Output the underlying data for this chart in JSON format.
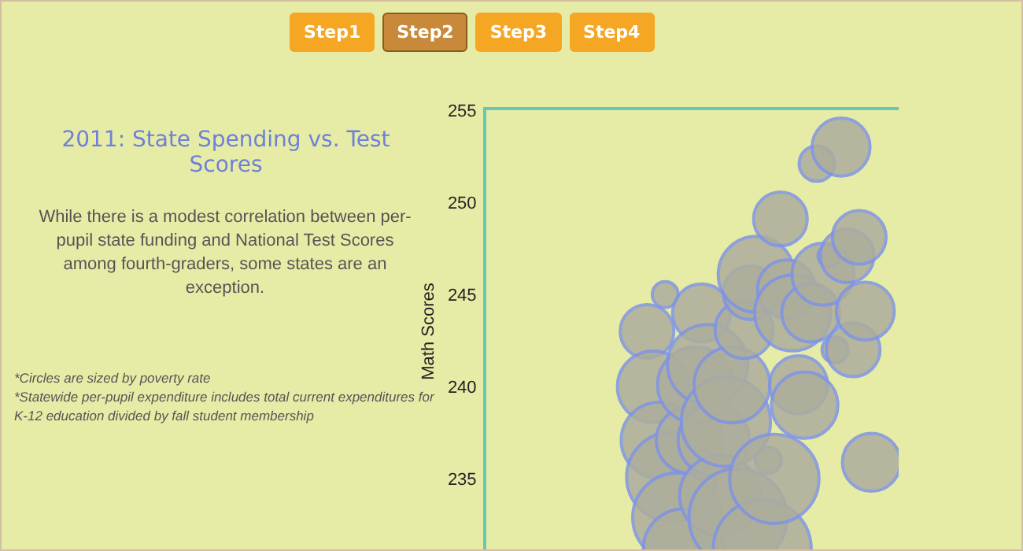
{
  "chart_data": {
    "type": "bubble",
    "title": "2011: State Spending vs. Test Scores",
    "subtitle": "While there is a modest correlation between per-pupil state funding and National Test Scores among fourth-graders, some states are an exception.",
    "ylabel": "Math Scores",
    "annotations": [
      "Step1",
      "Step2",
      "Step3",
      "Step4",
      "*Circles are sized by poverty rate",
      "*Statewide per-pupil expenditure includes total current expenditures for K-12 education divided by fall student membership"
    ],
    "categories": [
      null,
      null,
      null,
      null,
      null,
      null,
      null,
      null,
      null,
      null,
      null,
      null,
      null,
      null,
      null,
      null,
      null,
      null,
      null,
      null,
      null,
      null,
      null,
      null,
      null,
      null,
      null,
      null,
      null,
      null,
      null,
      null,
      null,
      null,
      null,
      null,
      null,
      null,
      null,
      null,
      null,
      null,
      null,
      null,
      null,
      null,
      null,
      null,
      null,
      null,
      null,
      null,
      null,
      null,
      null,
      null,
      null,
      null,
      null,
      null,
      null,
      null,
      null,
      null,
      null,
      null,
      null,
      null
    ],
    "values": [
      null,
      null,
      null,
      null,
      null,
      null,
      null,
      null,
      null,
      null,
      null,
      null,
      null,
      null,
      null,
      null,
      null,
      null,
      null,
      null,
      null,
      null,
      null,
      null,
      null,
      null,
      243.0,
      240.0,
      237.1,
      245.0,
      235.1,
      232.9,
      231.2,
      237.1,
      240.1,
      244.0,
      241.2,
      237.1,
      234.1,
      238.1,
      240.1,
      232.9,
      243.1,
      245.1,
      246.1,
      231.2,
      236.0,
      235.0,
      249.1,
      245.3,
      244.0,
      240.1,
      239.0,
      244.0,
      252.1,
      246.1,
      247.1,
      242.0,
      253.0,
      247.1,
      242.0,
      248.1,
      244.1,
      235.9,
      null,
      null,
      null,
      null
    ],
    "sizes": [
      null,
      null,
      null,
      null,
      null,
      null,
      null,
      null,
      null,
      null,
      null,
      null,
      null,
      null,
      null,
      null,
      null,
      null,
      null,
      null,
      null,
      null,
      null,
      null,
      null,
      null,
      0.3,
      0.53,
      0.6,
      0.07,
      0.83,
      0.83,
      0.67,
      0.46,
      0.6,
      0.35,
      0.67,
      0.53,
      0.67,
      0.83,
      0.6,
      1,
      0.35,
      0.3,
      0.6,
      1,
      0.07,
      0.83,
      0.3,
      0.35,
      0.6,
      0.35,
      0.46,
      0.35,
      0.13,
      0.4,
      0.05,
      0.07,
      0.35,
      0.3,
      0.3,
      0.3,
      0.35,
      0.35,
      null,
      null,
      null,
      null
    ],
    "color": "#adad9c",
    "ylim": [
      231,
      255
    ],
    "yticks": [
      235,
      240,
      245,
      250,
      255
    ],
    "tick_labels": "y",
    "grid": false,
    "legend": false,
    "marker": "circle"
  }
}
